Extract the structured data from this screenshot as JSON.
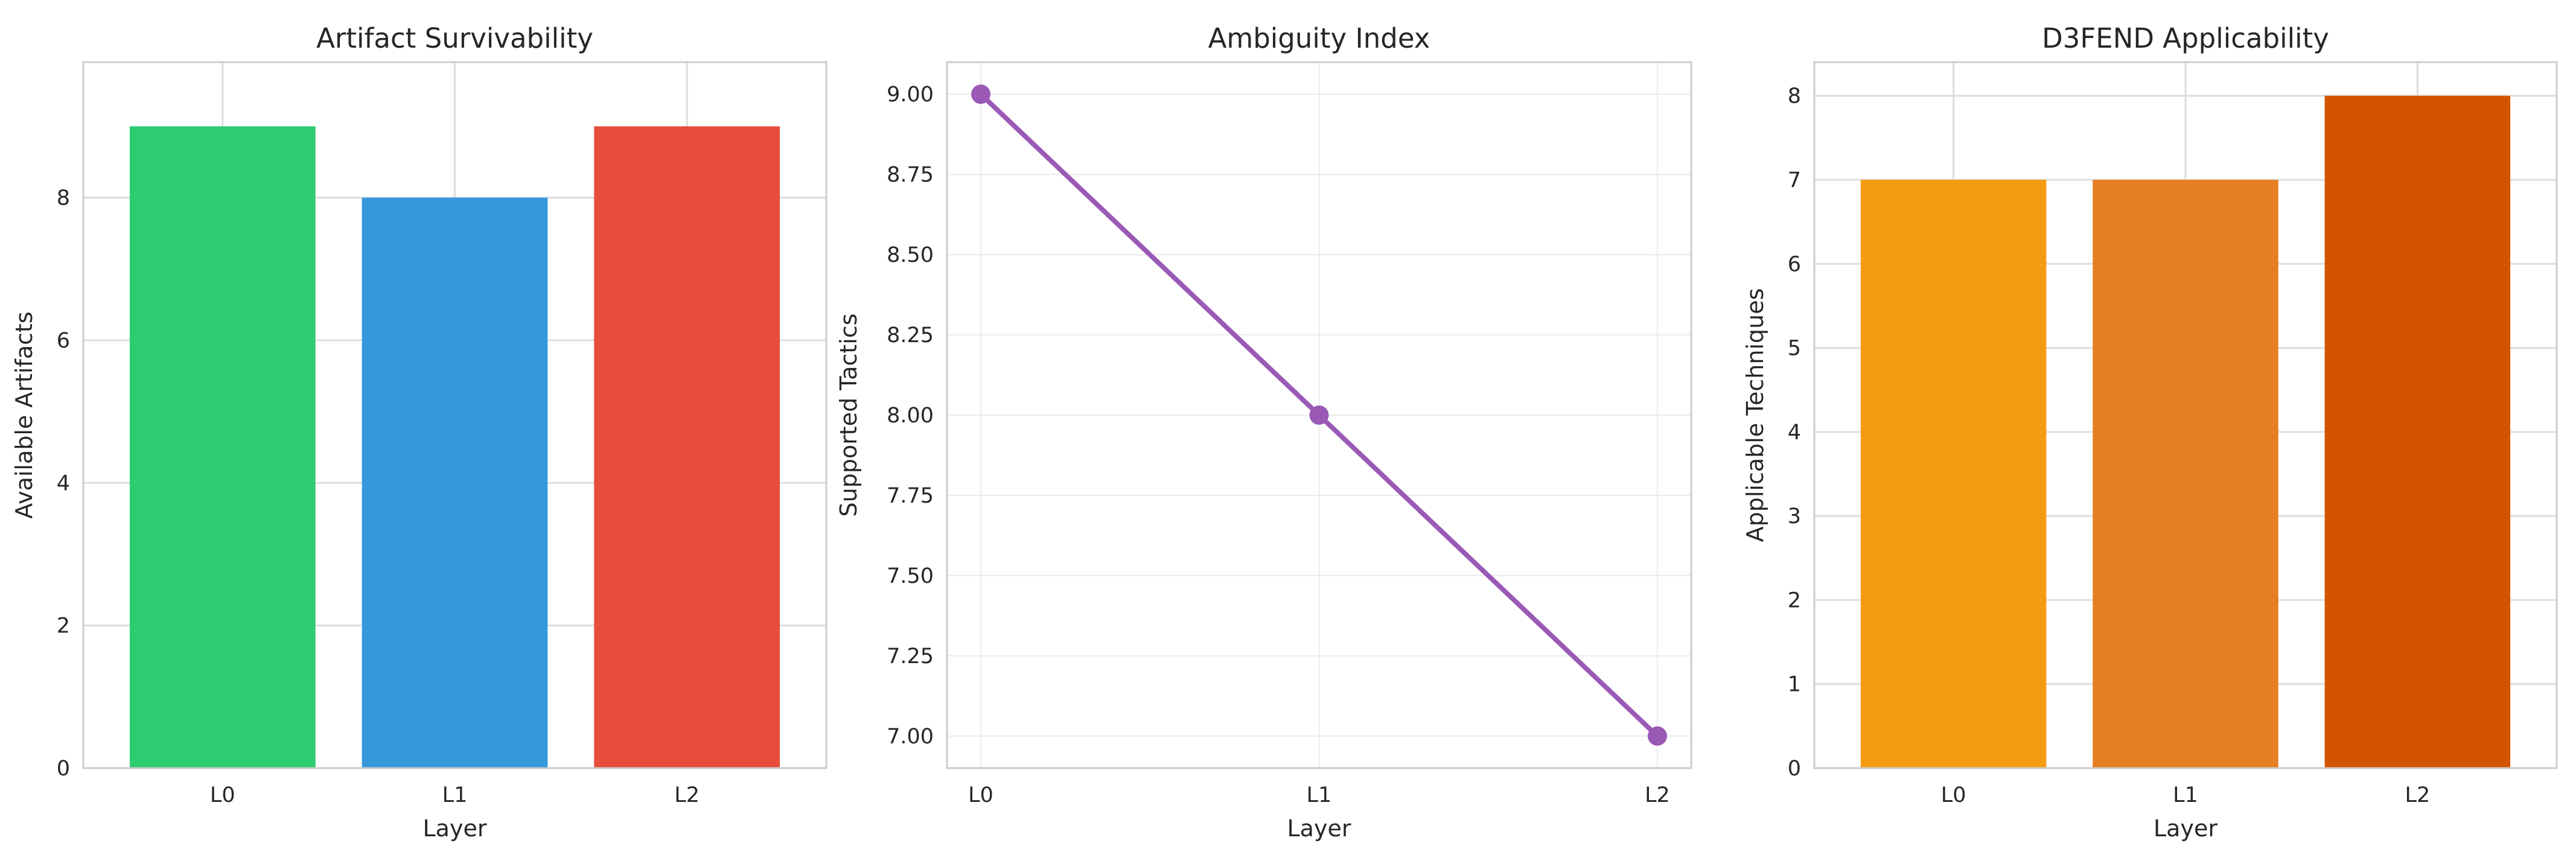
{
  "chart_data": [
    {
      "type": "bar",
      "title": "Artifact Survivability",
      "xlabel": "Layer",
      "ylabel": "Available Artifacts",
      "categories": [
        "L0",
        "L1",
        "L2"
      ],
      "values": [
        9,
        8,
        9
      ],
      "colors": [
        "#2ecc71",
        "#3498db",
        "#e74c3c"
      ],
      "ylim": [
        0,
        9.9
      ],
      "yticks": [
        0,
        2,
        4,
        6,
        8
      ],
      "grid": true,
      "legend": "none"
    },
    {
      "type": "line",
      "title": "Ambiguity Index",
      "xlabel": "Layer",
      "ylabel": "Supported Tactics",
      "categories": [
        "L0",
        "L1",
        "L2"
      ],
      "values": [
        9,
        8,
        7
      ],
      "colors": [
        "#9b59b6"
      ],
      "ylim": [
        6.9,
        9.1
      ],
      "yticks": [
        7.0,
        7.25,
        7.5,
        7.75,
        8.0,
        8.25,
        8.5,
        8.75,
        9.0
      ],
      "ytick_labels": [
        "7.00",
        "7.25",
        "7.50",
        "7.75",
        "8.00",
        "8.25",
        "8.50",
        "8.75",
        "9.00"
      ],
      "grid": true,
      "legend": "none"
    },
    {
      "type": "bar",
      "title": "D3FEND Applicability",
      "xlabel": "Layer",
      "ylabel": "Applicable Techniques",
      "categories": [
        "L0",
        "L1",
        "L2"
      ],
      "values": [
        7,
        7,
        8
      ],
      "colors": [
        "#f39c12",
        "#e67e22",
        "#d35400"
      ],
      "ylim": [
        0,
        8.4
      ],
      "yticks": [
        0,
        1,
        2,
        3,
        4,
        5,
        6,
        7,
        8
      ],
      "grid": true,
      "legend": "none"
    }
  ]
}
